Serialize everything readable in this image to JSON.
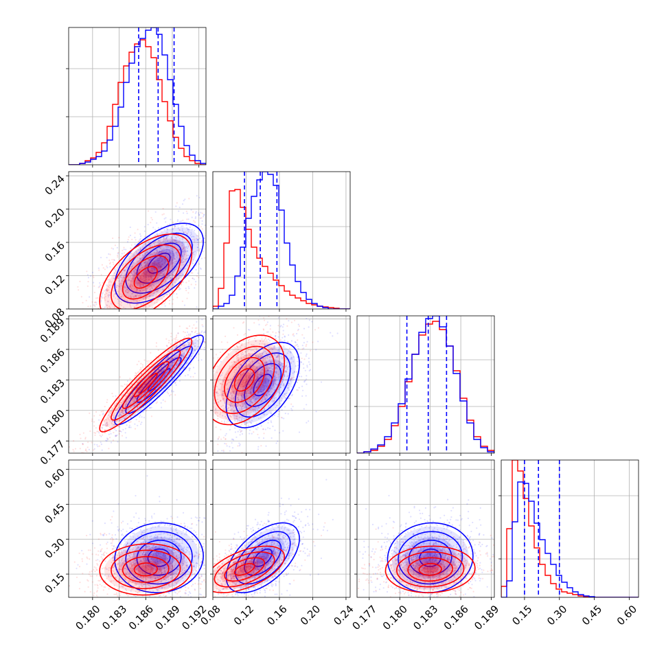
{
  "chart_data": {
    "type": "corner",
    "grid": true,
    "colors": {
      "series_a": "#0000ff",
      "series_b": "#ff0000"
    },
    "series": [
      {
        "color": "#0000ff"
      },
      {
        "color": "#ff0000"
      }
    ],
    "params": [
      {
        "range": [
          0.1773,
          0.1928
        ],
        "ticks": [
          "0.180",
          "0.183",
          "0.186",
          "0.189",
          "0.192"
        ],
        "quantiles": [
          0.1852,
          0.1874,
          0.1892
        ],
        "hist_a": [
          0.0,
          0.0,
          0.01,
          0.02,
          0.04,
          0.06,
          0.1,
          0.18,
          0.28,
          0.42,
          0.6,
          0.74,
          0.86,
          0.92,
          0.98,
          1.0,
          0.95,
          0.8,
          0.62,
          0.44,
          0.28,
          0.14,
          0.07,
          0.03,
          0.01
        ],
        "hist_b": [
          0.0,
          0.0,
          0.01,
          0.03,
          0.05,
          0.09,
          0.16,
          0.28,
          0.44,
          0.6,
          0.72,
          0.82,
          0.88,
          0.91,
          0.86,
          0.78,
          0.62,
          0.46,
          0.32,
          0.2,
          0.12,
          0.06,
          0.03,
          0.01,
          0.0
        ],
        "hist_yticks": [
          0.35,
          0.7
        ]
      },
      {
        "range": [
          0.08,
          0.245
        ],
        "ticks": [
          "0.08",
          "0.12",
          "0.16",
          "0.20",
          "0.24"
        ],
        "quantiles": [
          0.118,
          0.137,
          0.157
        ],
        "hist_a": [
          0.0,
          0.02,
          0.04,
          0.1,
          0.24,
          0.45,
          0.66,
          0.82,
          0.94,
          1.0,
          0.98,
          0.9,
          0.72,
          0.48,
          0.32,
          0.2,
          0.12,
          0.07,
          0.04,
          0.02,
          0.01,
          0.0,
          0.0,
          0.0,
          0.0
        ],
        "hist_b": [
          0.02,
          0.15,
          0.48,
          0.86,
          0.87,
          0.74,
          0.58,
          0.45,
          0.37,
          0.31,
          0.26,
          0.21,
          0.17,
          0.13,
          0.1,
          0.08,
          0.06,
          0.04,
          0.03,
          0.02,
          0.015,
          0.01,
          0.005,
          0.0,
          0.0
        ],
        "hist_yticks": [
          0.23,
          0.6
        ]
      },
      {
        "range": [
          0.1758,
          0.1893
        ],
        "ticks": [
          "0.177",
          "0.180",
          "0.183",
          "0.186",
          "0.189"
        ],
        "quantiles": [
          0.1807,
          0.1828,
          0.1846
        ],
        "hist_a": [
          0.0,
          0.01,
          0.03,
          0.06,
          0.12,
          0.22,
          0.36,
          0.54,
          0.72,
          0.88,
          0.98,
          1.0,
          0.92,
          0.78,
          0.58,
          0.38,
          0.22,
          0.1,
          0.04,
          0.01
        ],
        "hist_b": [
          0.0,
          0.01,
          0.02,
          0.05,
          0.1,
          0.2,
          0.34,
          0.52,
          0.72,
          0.86,
          0.94,
          0.96,
          0.9,
          0.78,
          0.6,
          0.4,
          0.24,
          0.12,
          0.05,
          0.02
        ],
        "hist_yticks": [
          0.34,
          0.68
        ]
      },
      {
        "range": [
          0.05,
          0.64
        ],
        "ticks": [
          "0.15",
          "0.30",
          "0.45",
          "0.60"
        ],
        "quantiles": [
          0.15,
          0.21,
          0.3
        ],
        "hist_a": [
          0.0,
          0.12,
          0.55,
          0.84,
          0.83,
          0.7,
          0.54,
          0.42,
          0.32,
          0.24,
          0.16,
          0.11,
          0.07,
          0.04,
          0.02,
          0.01,
          0.005,
          0.0,
          0.0,
          0.0,
          0.0,
          0.0,
          0.0,
          0.0,
          0.0
        ],
        "hist_b": [
          0.08,
          0.5,
          1.0,
          0.92,
          0.72,
          0.52,
          0.36,
          0.24,
          0.16,
          0.1,
          0.06,
          0.04,
          0.03,
          0.02,
          0.01,
          0.005,
          0.0,
          0.0,
          0.0,
          0.0,
          0.0,
          0.0,
          0.0,
          0.0,
          0.0
        ],
        "hist_yticks": [
          0.28,
          0.74
        ]
      }
    ],
    "scatter": {
      "1-0": {
        "a": {
          "mean": [
            0.1875,
            0.135
          ],
          "sd": [
            0.0025,
            0.024
          ],
          "rho": 0.55
        },
        "b": {
          "mean": [
            0.186,
            0.118
          ],
          "sd": [
            0.0026,
            0.026
          ],
          "rho": 0.55
        }
      },
      "2-0": {
        "a": {
          "mean": [
            0.1875,
            0.183
          ],
          "sd": [
            0.0025,
            0.0022
          ],
          "rho": 0.93
        },
        "b": {
          "mean": [
            0.186,
            0.1825
          ],
          "sd": [
            0.0026,
            0.0023
          ],
          "rho": 0.93
        }
      },
      "2-1": {
        "a": {
          "mean": [
            0.14,
            0.1825
          ],
          "sd": [
            0.022,
            0.0021
          ],
          "rho": 0.5
        },
        "b": {
          "mean": [
            0.118,
            0.183
          ],
          "sd": [
            0.024,
            0.0022
          ],
          "rho": 0.4
        }
      },
      "3-0": {
        "a": {
          "mean": [
            0.1875,
            0.22
          ],
          "sd": [
            0.0025,
            0.075
          ],
          "rho": 0.05
        },
        "b": {
          "mean": [
            0.186,
            0.17
          ],
          "sd": [
            0.0026,
            0.055
          ],
          "rho": 0.05
        }
      },
      "3-1": {
        "a": {
          "mean": [
            0.14,
            0.22
          ],
          "sd": [
            0.022,
            0.075
          ],
          "rho": 0.55
        },
        "b": {
          "mean": [
            0.118,
            0.17
          ],
          "sd": [
            0.024,
            0.05
          ],
          "rho": 0.55
        }
      },
      "3-2": {
        "a": {
          "mean": [
            0.183,
            0.22
          ],
          "sd": [
            0.0021,
            0.075
          ],
          "rho": 0.05
        },
        "b": {
          "mean": [
            0.183,
            0.17
          ],
          "sd": [
            0.0022,
            0.05
          ],
          "rho": 0.05
        }
      }
    }
  }
}
